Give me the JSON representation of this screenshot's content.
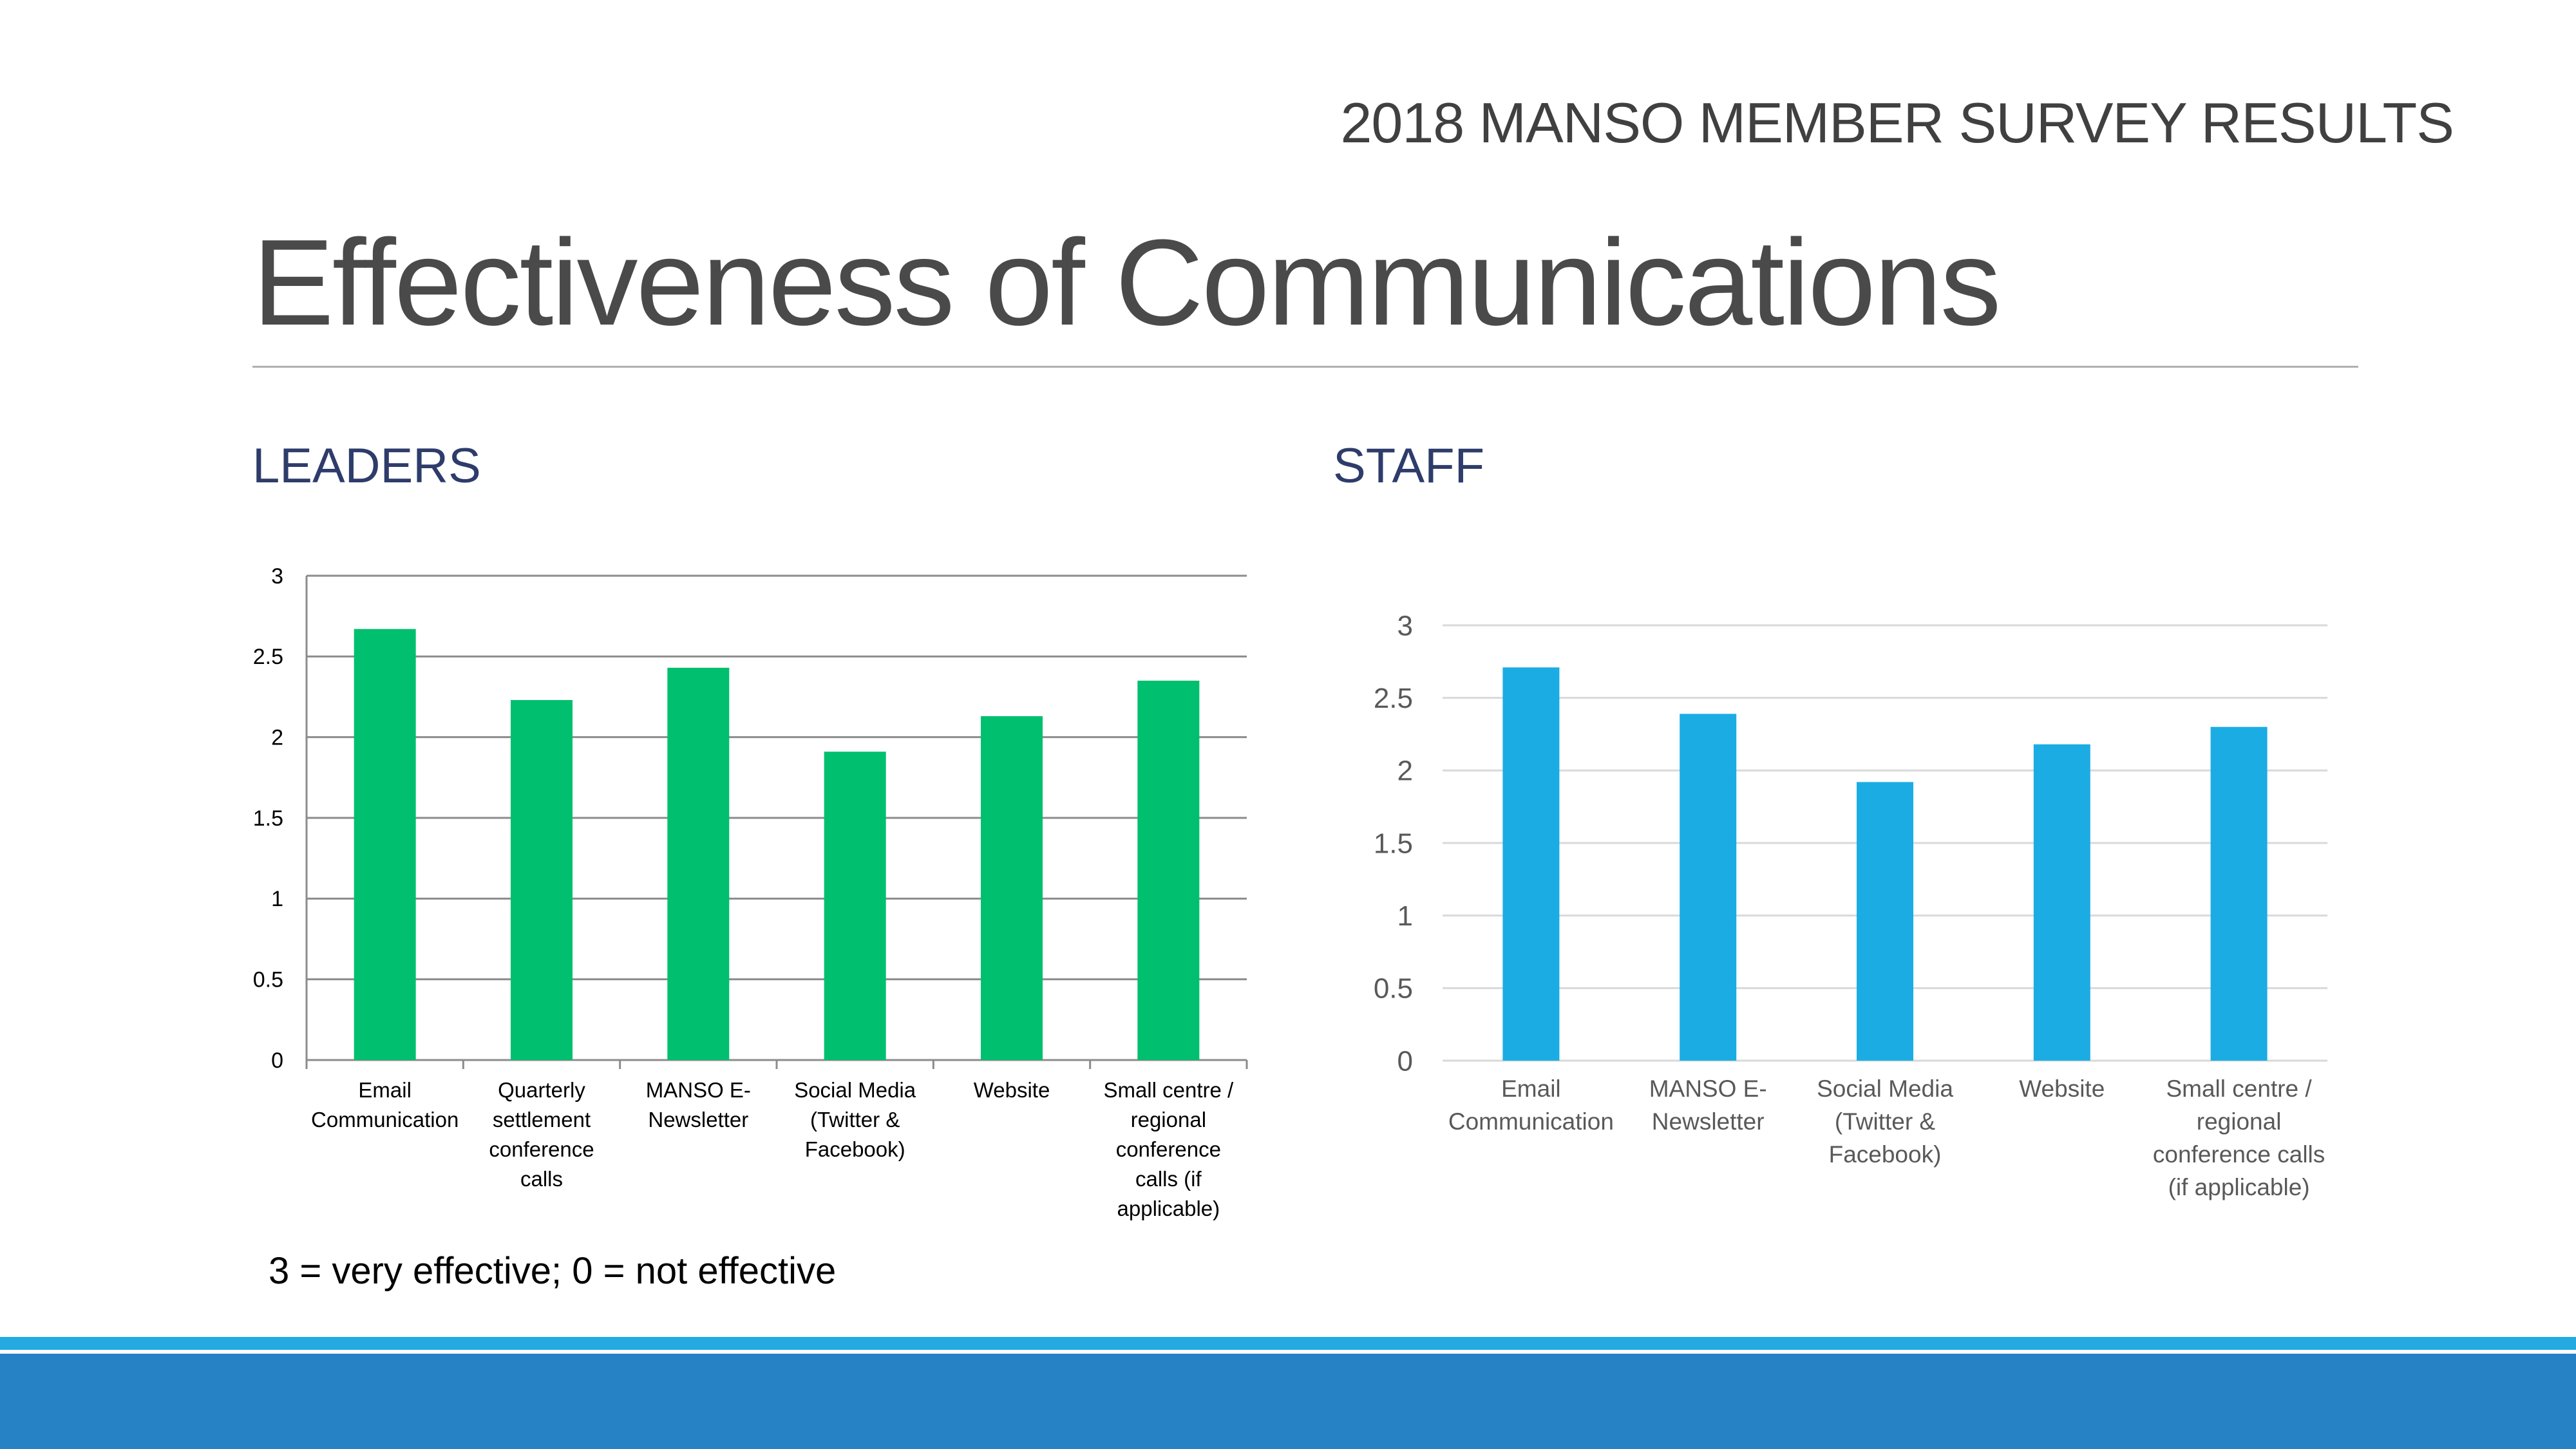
{
  "header": {
    "subtitle": "2018 MANSO MEMBER SURVEY RESULTS",
    "title": "Effectiveness of Communications"
  },
  "sections": {
    "leaders_label": "LEADERS",
    "staff_label": "STAFF"
  },
  "note": "3 = very effective; 0 = not effective",
  "colors": {
    "leaders_bar": "#00bf6f",
    "staff_bar": "#1cace4",
    "footer_dark": "#2681c5",
    "footer_light": "#24a9e1"
  },
  "chart_data": [
    {
      "type": "bar",
      "id": "leaders",
      "categories": [
        [
          "Email",
          "Communication"
        ],
        [
          "Quarterly",
          "settlement",
          "conference",
          "calls"
        ],
        [
          "MANSO E-",
          "Newsletter"
        ],
        [
          "Social Media",
          "(Twitter &",
          "Facebook)"
        ],
        [
          "Website"
        ],
        [
          "Small centre /",
          "regional",
          "conference",
          "calls (if",
          "applicable)"
        ]
      ],
      "values": [
        2.67,
        2.23,
        2.43,
        1.91,
        2.13,
        2.35
      ],
      "ylim": [
        0,
        3
      ],
      "yticks": [
        "0",
        "0.5",
        "1",
        "1.5",
        "2",
        "2.5",
        "3"
      ],
      "grid": true
    },
    {
      "type": "bar",
      "id": "staff",
      "categories": [
        [
          "Email",
          "Communication"
        ],
        [
          "MANSO E-",
          "Newsletter"
        ],
        [
          "Social Media",
          "(Twitter &",
          "Facebook)"
        ],
        [
          "Website"
        ],
        [
          "Small centre /",
          "regional",
          "conference calls",
          "(if applicable)"
        ]
      ],
      "values": [
        2.71,
        2.39,
        1.92,
        2.18,
        2.3
      ],
      "ylim": [
        0,
        3
      ],
      "yticks": [
        "0",
        "0.5",
        "1",
        "1.5",
        "2",
        "2.5",
        "3"
      ],
      "grid": true
    }
  ]
}
